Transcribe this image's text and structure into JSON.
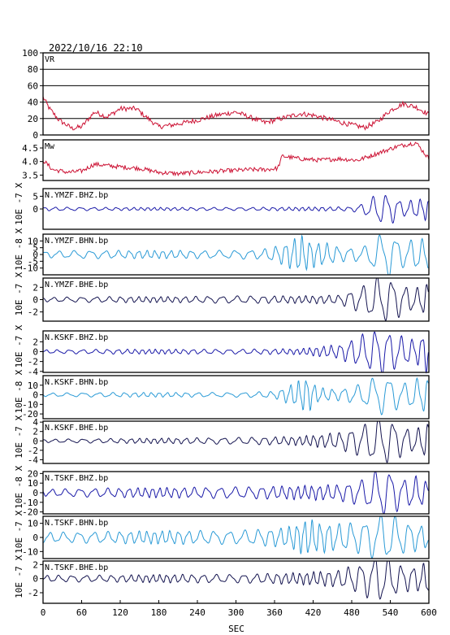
{
  "title": "2022/10/16  22:10",
  "x_axis": {
    "label": "SEC",
    "ticks": [
      "0",
      "60",
      "120",
      "180",
      "240",
      "300",
      "360",
      "420",
      "480",
      "540",
      "600"
    ],
    "range": [
      0,
      600
    ]
  },
  "colors": {
    "vr_mw": "#cc1133",
    "bhz": "#1a1aa8",
    "bhn": "#2a9ad6",
    "bhe": "#141450",
    "frame": "#000000"
  },
  "chart_data": [
    {
      "type": "line",
      "name": "VR",
      "label": "VR",
      "ylim": [
        0,
        100
      ],
      "yticks": [
        "100",
        "80",
        "60",
        "40",
        "20",
        "0"
      ],
      "grid": "horizontal",
      "anchors": [
        [
          0,
          46
        ],
        [
          10,
          32
        ],
        [
          25,
          18
        ],
        [
          45,
          8
        ],
        [
          60,
          10
        ],
        [
          80,
          28
        ],
        [
          100,
          22
        ],
        [
          120,
          32
        ],
        [
          145,
          32
        ],
        [
          160,
          22
        ],
        [
          180,
          10
        ],
        [
          200,
          12
        ],
        [
          240,
          18
        ],
        [
          270,
          24
        ],
        [
          300,
          28
        ],
        [
          320,
          22
        ],
        [
          345,
          15
        ],
        [
          360,
          18
        ],
        [
          380,
          22
        ],
        [
          400,
          26
        ],
        [
          420,
          24
        ],
        [
          440,
          20
        ],
        [
          470,
          14
        ],
        [
          500,
          9
        ],
        [
          520,
          16
        ],
        [
          540,
          30
        ],
        [
          560,
          38
        ],
        [
          580,
          34
        ],
        [
          600,
          25
        ]
      ],
      "noise": 3
    },
    {
      "type": "line",
      "name": "Mw",
      "label": "Mw",
      "ylim": [
        3.3,
        4.8
      ],
      "yticks": [
        "4.5",
        "4.0",
        "3.5"
      ],
      "tick_values": [
        4.5,
        4.0,
        3.5
      ],
      "anchors": [
        [
          0,
          4.05
        ],
        [
          15,
          3.7
        ],
        [
          40,
          3.6
        ],
        [
          60,
          3.65
        ],
        [
          80,
          3.9
        ],
        [
          100,
          3.85
        ],
        [
          120,
          3.8
        ],
        [
          150,
          3.75
        ],
        [
          180,
          3.6
        ],
        [
          210,
          3.55
        ],
        [
          240,
          3.6
        ],
        [
          280,
          3.65
        ],
        [
          320,
          3.7
        ],
        [
          345,
          3.7
        ],
        [
          365,
          3.75
        ],
        [
          372,
          4.2
        ],
        [
          400,
          4.1
        ],
        [
          430,
          4.05
        ],
        [
          460,
          4.1
        ],
        [
          490,
          4.05
        ],
        [
          520,
          4.3
        ],
        [
          550,
          4.55
        ],
        [
          580,
          4.7
        ],
        [
          600,
          4.1
        ]
      ],
      "noise": 0.08
    },
    {
      "type": "line",
      "name": "N.YMZF.BHZ.bp",
      "label": "N.YMZF.BHZ.bp",
      "exponent": "10E -7",
      "ylim": [
        -8,
        8
      ],
      "yticks": [
        "5",
        "0"
      ],
      "tick_values": [
        5,
        0
      ],
      "envelope": [
        [
          0,
          0.6
        ],
        [
          100,
          0.5
        ],
        [
          200,
          0.5
        ],
        [
          300,
          0.5
        ],
        [
          400,
          0.6
        ],
        [
          480,
          0.7
        ],
        [
          500,
          2
        ],
        [
          520,
          5
        ],
        [
          540,
          5
        ],
        [
          560,
          2.5
        ],
        [
          580,
          3
        ],
        [
          600,
          4
        ]
      ],
      "period": 18,
      "shape": "growing"
    },
    {
      "type": "line",
      "name": "N.YMZF.BHN.bp",
      "label": "N.YMZF.BHN.bp",
      "exponent": "10E -8",
      "ylim": [
        -15,
        15
      ],
      "yticks": [
        "10",
        "5",
        "0",
        "-5",
        "-10"
      ],
      "tick_values": [
        10,
        5,
        0,
        -5,
        -10
      ],
      "envelope": [
        [
          0,
          2
        ],
        [
          60,
          2.5
        ],
        [
          120,
          2.5
        ],
        [
          200,
          2.5
        ],
        [
          280,
          2.5
        ],
        [
          340,
          3
        ],
        [
          370,
          6
        ],
        [
          400,
          12
        ],
        [
          420,
          8
        ],
        [
          440,
          7
        ],
        [
          470,
          4
        ],
        [
          500,
          5
        ],
        [
          520,
          12
        ],
        [
          540,
          14
        ],
        [
          560,
          8
        ],
        [
          580,
          10
        ],
        [
          600,
          9
        ]
      ],
      "period": 22,
      "shape": "wave"
    },
    {
      "type": "line",
      "name": "N.YMZF.BHE.bp",
      "label": "N.YMZF.BHE.bp",
      "exponent": "10E -7",
      "ylim": [
        -3.5,
        3.5
      ],
      "yticks": [
        "2",
        "0",
        "-2"
      ],
      "tick_values": [
        2,
        0,
        -2
      ],
      "envelope": [
        [
          0,
          0.3
        ],
        [
          100,
          0.4
        ],
        [
          200,
          0.4
        ],
        [
          300,
          0.5
        ],
        [
          400,
          0.5
        ],
        [
          460,
          0.6
        ],
        [
          500,
          2
        ],
        [
          520,
          3.2
        ],
        [
          540,
          3
        ],
        [
          560,
          2
        ],
        [
          580,
          1.5
        ],
        [
          600,
          2.5
        ]
      ],
      "period": 20,
      "shape": "growing"
    },
    {
      "type": "line",
      "name": "N.KSKF.BHZ.bp",
      "label": "N.KSKF.BHZ.bp",
      "exponent": "10E -7",
      "ylim": [
        -4.2,
        4.2
      ],
      "yticks": [
        "2",
        "0",
        "-2",
        "-4"
      ],
      "tick_values": [
        2,
        0,
        -2,
        -4
      ],
      "envelope": [
        [
          0,
          0.3
        ],
        [
          100,
          0.4
        ],
        [
          200,
          0.4
        ],
        [
          300,
          0.4
        ],
        [
          400,
          0.5
        ],
        [
          460,
          1.2
        ],
        [
          500,
          3
        ],
        [
          520,
          4
        ],
        [
          540,
          3.5
        ],
        [
          560,
          2.5
        ],
        [
          580,
          2
        ],
        [
          600,
          4
        ]
      ],
      "period": 18,
      "shape": "growing"
    },
    {
      "type": "line",
      "name": "N.KSKF.BHN.bp",
      "label": "N.KSKF.BHN.bp",
      "exponent": "10E -8",
      "ylim": [
        -25,
        20
      ],
      "yticks": [
        "10",
        "0",
        "-10",
        "-20"
      ],
      "tick_values": [
        10,
        0,
        -10,
        -20
      ],
      "envelope": [
        [
          0,
          1.5
        ],
        [
          100,
          2
        ],
        [
          200,
          2
        ],
        [
          300,
          2
        ],
        [
          360,
          3
        ],
        [
          390,
          10
        ],
        [
          410,
          16
        ],
        [
          430,
          6
        ],
        [
          460,
          5
        ],
        [
          500,
          10
        ],
        [
          520,
          18
        ],
        [
          540,
          16
        ],
        [
          560,
          10
        ],
        [
          580,
          14
        ],
        [
          600,
          16
        ]
      ],
      "period": 22,
      "shape": "wave"
    },
    {
      "type": "line",
      "name": "N.KSKF.BHE.bp",
      "label": "N.KSKF.BHE.bp",
      "exponent": "10E -7",
      "ylim": [
        -4.8,
        4.2
      ],
      "yticks": [
        "4",
        "2",
        "0",
        "-2",
        "-4"
      ],
      "tick_values": [
        4,
        2,
        0,
        -2,
        -4
      ],
      "envelope": [
        [
          0,
          0.3
        ],
        [
          100,
          0.4
        ],
        [
          200,
          0.5
        ],
        [
          300,
          0.6
        ],
        [
          400,
          0.8
        ],
        [
          460,
          1.5
        ],
        [
          500,
          3
        ],
        [
          520,
          4.5
        ],
        [
          540,
          4
        ],
        [
          560,
          2.5
        ],
        [
          580,
          2
        ],
        [
          600,
          3.5
        ]
      ],
      "period": 20,
      "shape": "growing"
    },
    {
      "type": "line",
      "name": "N.TSKF.BHZ.bp",
      "label": "N.TSKF.BHZ.bp",
      "exponent": "10E -8",
      "ylim": [
        -22,
        22
      ],
      "yticks": [
        "20",
        "10",
        "0",
        "-10",
        "-20"
      ],
      "tick_values": [
        20,
        10,
        0,
        -10,
        -20
      ],
      "envelope": [
        [
          0,
          3
        ],
        [
          100,
          4
        ],
        [
          200,
          4.5
        ],
        [
          300,
          5
        ],
        [
          400,
          6
        ],
        [
          460,
          7
        ],
        [
          500,
          12
        ],
        [
          520,
          20
        ],
        [
          540,
          20
        ],
        [
          560,
          12
        ],
        [
          580,
          14
        ],
        [
          600,
          10
        ]
      ],
      "period": 20,
      "shape": "wave"
    },
    {
      "type": "line",
      "name": "N.TSKF.BHN.bp",
      "label": "N.TSKF.BHN.bp",
      "exponent": "10E -7",
      "ylim": [
        -15,
        15
      ],
      "yticks": [
        "10",
        "0",
        "-10"
      ],
      "tick_values": [
        10,
        0,
        -10
      ],
      "envelope": [
        [
          0,
          3
        ],
        [
          100,
          3.5
        ],
        [
          200,
          4
        ],
        [
          300,
          4
        ],
        [
          380,
          6
        ],
        [
          410,
          11
        ],
        [
          430,
          9
        ],
        [
          460,
          8
        ],
        [
          500,
          10
        ],
        [
          520,
          14
        ],
        [
          540,
          14
        ],
        [
          560,
          10
        ],
        [
          580,
          8
        ],
        [
          600,
          7
        ]
      ],
      "period": 21,
      "shape": "wave"
    },
    {
      "type": "line",
      "name": "N.TSKF.BHE.bp",
      "label": "N.TSKF.BHE.bp",
      "exponent": "10E -7",
      "ylim": [
        -3.5,
        2.5
      ],
      "yticks": [
        "2",
        "0",
        "-2"
      ],
      "tick_values": [
        2,
        0,
        -2
      ],
      "envelope": [
        [
          0,
          0.4
        ],
        [
          100,
          0.4
        ],
        [
          200,
          0.5
        ],
        [
          300,
          0.5
        ],
        [
          400,
          0.7
        ],
        [
          460,
          1
        ],
        [
          500,
          2
        ],
        [
          520,
          3
        ],
        [
          540,
          2.5
        ],
        [
          560,
          1.5
        ],
        [
          580,
          1.5
        ],
        [
          600,
          2
        ]
      ],
      "period": 19,
      "shape": "growing"
    }
  ]
}
